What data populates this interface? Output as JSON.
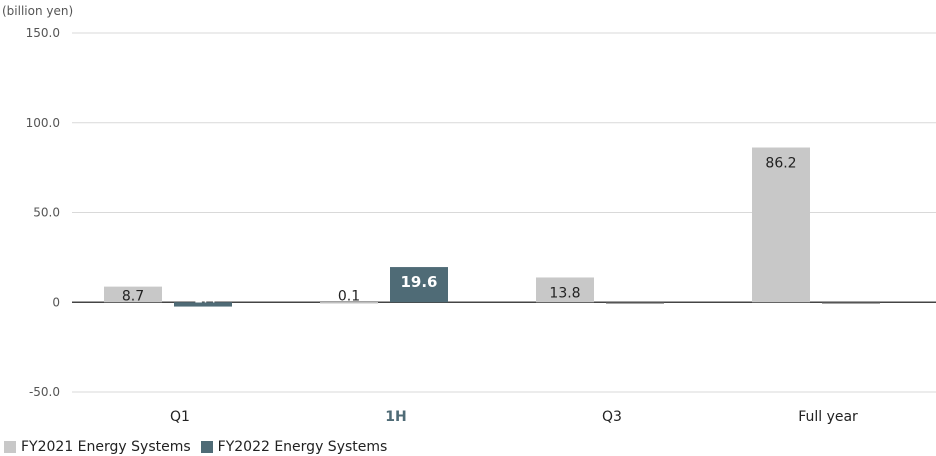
{
  "chart_data": {
    "type": "bar",
    "unit_label": "(billion yen)",
    "categories": [
      "Q1",
      "1H",
      "Q3",
      "Full year"
    ],
    "highlight_category": "1H",
    "ylim": [
      -50,
      150
    ],
    "yticks": [
      {
        "value": 150,
        "label": "150.0"
      },
      {
        "value": 100,
        "label": "100.0"
      },
      {
        "value": 50,
        "label": "50.0"
      },
      {
        "value": 0,
        "label": "0"
      },
      {
        "value": -50,
        "label": "-50.0"
      }
    ],
    "series": [
      {
        "name": "FY2021 Energy Systems",
        "color": "#c8c8c8",
        "values": [
          8.7,
          0.1,
          13.8,
          86.2
        ],
        "labels": [
          "8.7",
          "0.1",
          "13.8",
          "86.2"
        ]
      },
      {
        "name": "FY2022 Energy Systems",
        "color": "#4f6b76",
        "values": [
          -2.4,
          19.6,
          null,
          null
        ],
        "labels": [
          "-2.4",
          "19.6",
          "",
          ""
        ]
      }
    ],
    "grid": true,
    "legend_position": "bottom-left",
    "highlight_color": "#4f6b76"
  }
}
